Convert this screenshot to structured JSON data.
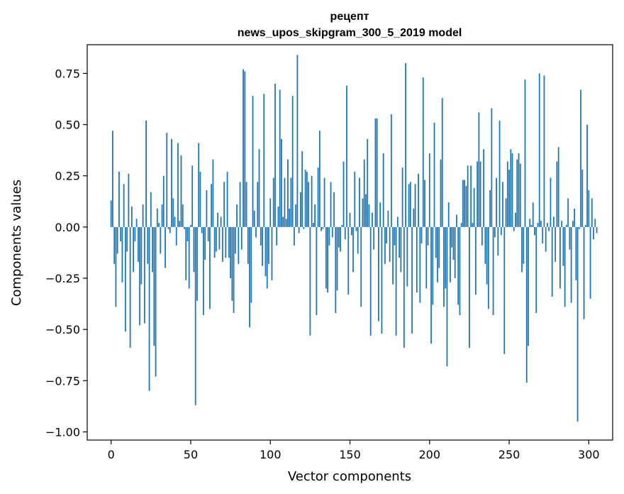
{
  "chart_data": {
    "type": "bar",
    "title": "рецепт",
    "subtitle": "news_upos_skipgram_300_5_2019 model",
    "xlabel": "Vector components",
    "ylabel": "Components values",
    "xlim": [
      -15,
      315
    ],
    "ylim": [
      -1.04,
      0.89
    ],
    "xticks": [
      0,
      50,
      100,
      150,
      200,
      250,
      300
    ],
    "xtick_labels": [
      "0",
      "50",
      "100",
      "150",
      "200",
      "250",
      "300"
    ],
    "yticks": [
      0.75,
      0.5,
      0.25,
      0.0,
      -0.25,
      -0.5,
      -0.75,
      -1.0
    ],
    "ytick_labels": [
      "0.75",
      "0.50",
      "0.25",
      "0.00",
      "−0.25",
      "−0.50",
      "−0.75",
      "−1.00"
    ],
    "color": "#1f77b4",
    "series": [
      {
        "name": "рецепт",
        "x_start": 0,
        "values": [
          0.13,
          0.47,
          -0.18,
          -0.39,
          -0.13,
          0.27,
          -0.07,
          -0.27,
          0.21,
          -0.51,
          -0.12,
          0.26,
          -0.59,
          0.1,
          -0.22,
          -0.07,
          0.04,
          -0.17,
          -0.48,
          -0.28,
          0.11,
          -0.47,
          0.52,
          -0.18,
          -0.8,
          0.17,
          -0.22,
          -0.58,
          -0.73,
          0.09,
          0.02,
          -0.13,
          0.11,
          0.25,
          -0.2,
          0.46,
          -0.01,
          -0.03,
          0.43,
          0.14,
          0.05,
          -0.09,
          0.41,
          0.03,
          0.35,
          0.11,
          -0.01,
          -0.26,
          -0.07,
          -0.3,
          0.01,
          0.3,
          -0.22,
          -0.87,
          -0.36,
          0.41,
          0.27,
          -0.03,
          -0.43,
          -0.16,
          0.18,
          -0.07,
          -0.4,
          0.21,
          0.33,
          -0.15,
          -0.12,
          0.07,
          -0.11,
          0.05,
          -0.17,
          0.22,
          -0.15,
          0.27,
          -0.15,
          -0.25,
          -0.36,
          -0.42,
          -0.13,
          0.11,
          -0.18,
          0.22,
          -0.11,
          0.77,
          0.76,
          0.22,
          -0.18,
          -0.49,
          -0.37,
          0.64,
          0.08,
          -0.05,
          0.22,
          0.38,
          -0.09,
          -0.19,
          0.65,
          -0.24,
          -0.3,
          -0.18,
          0.14,
          -0.26,
          0.24,
          0.7,
          -0.09,
          0.1,
          0.67,
          0.43,
          0.05,
          0.24,
          0.04,
          0.33,
          0.09,
          0.24,
          0.64,
          -0.09,
          0.11,
          0.84,
          -0.03,
          0.17,
          0.37,
          -0.01,
          0.28,
          0.27,
          0.22,
          -0.53,
          0.25,
          0.02,
          0.11,
          -0.43,
          0.29,
          0.47,
          -0.02,
          -0.01,
          0.24,
          -0.3,
          -0.32,
          -0.09,
          0.22,
          -0.05,
          0.17,
          -0.42,
          -0.31,
          -0.1,
          -0.12,
          0.01,
          0.32,
          -0.06,
          0.69,
          -0.33,
          0.07,
          -0.04,
          -0.22,
          0.27,
          -0.02,
          -0.13,
          0.24,
          -0.39,
          0.14,
          0.33,
          0.16,
          0.43,
          0.11,
          -0.53,
          0.07,
          -0.11,
          0.53,
          0.53,
          -0.46,
          0.12,
          -0.52,
          0.36,
          -0.18,
          -0.08,
          0.08,
          -0.17,
          0.55,
          -0.28,
          -0.09,
          -0.53,
          0.05,
          -0.15,
          -0.22,
          0.29,
          -0.59,
          0.8,
          -0.29,
          0.21,
          0.22,
          -0.52,
          0.09,
          0.21,
          -0.32,
          0.26,
          -0.37,
          -0.08,
          0.73,
          0.23,
          -0.3,
          -0.09,
          0.36,
          -0.57,
          -0.38,
          0.51,
          -0.15,
          -0.27,
          -0.2,
          0.33,
          0.63,
          -0.39,
          -0.3,
          -0.68,
          0.12,
          -0.27,
          -0.1,
          -0.16,
          -0.25,
          0.06,
          -0.38,
          -0.43,
          0.02,
          0.23,
          0.23,
          0.2,
          0.3,
          -0.59,
          0.3,
          0.02,
          0.19,
          -0.33,
          0.32,
          0.56,
          0.32,
          -0.09,
          0.38,
          -0.18,
          -0.28,
          -0.4,
          0.18,
          0.58,
          -0.43,
          -0.05,
          0.24,
          -0.14,
          0.52,
          -0.04,
          0.22,
          -0.62,
          0.14,
          0.32,
          0.28,
          0.38,
          0.36,
          -0.02,
          0.07,
          0.33,
          0.36,
          0.31,
          -0.22,
          -0.18,
          0.72,
          -0.76,
          -0.58,
          0.04,
          0.01,
          0.12,
          -0.04,
          -0.42,
          0.02,
          0.75,
          0.03,
          -0.08,
          0.74,
          -0.12,
          0.02,
          -0.02,
          0.24,
          -0.34,
          0.05,
          -0.17,
          0.32,
          0.39,
          -0.3,
          0.03,
          -0.19,
          -0.39,
          0.01,
          0.14,
          -0.11,
          -0.37,
          0.03,
          0.09,
          -0.26,
          -0.95,
          -0.01,
          0.67,
          0.28,
          -0.45,
          0.01,
          0.5,
          0.18,
          -0.35,
          0.14,
          -0.06,
          0.04,
          -0.03
        ]
      }
    ]
  }
}
